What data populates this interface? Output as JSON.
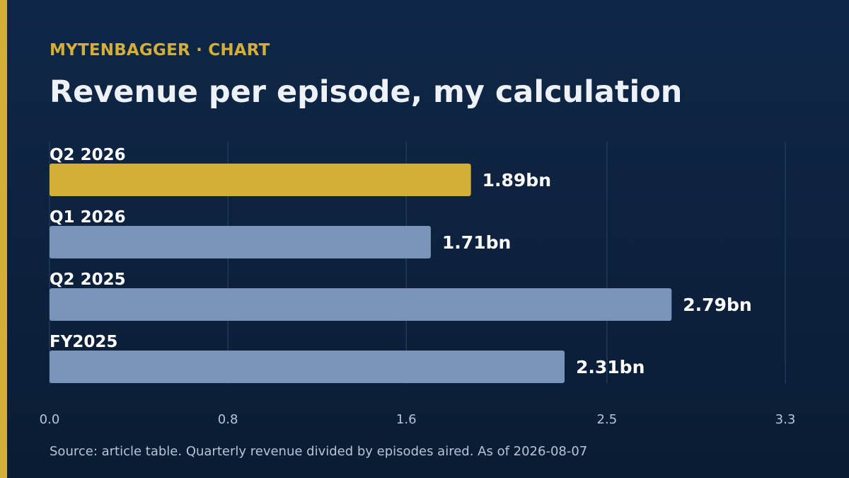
{
  "header": {
    "kicker": "MYTENBAGGER · CHART",
    "title": "Revenue per episode, my calculation"
  },
  "footer": {
    "source": "Source: article table. Quarterly revenue divided by episodes aired. As of 2026-08-07"
  },
  "colors": {
    "accent": "#d4af37",
    "highlight_bar": "#d4af37",
    "bar": "#7a93b8",
    "grid": "#2a4466",
    "tick_text": "#b9c4d6",
    "label_text": "#ffffff"
  },
  "chart_data": {
    "type": "bar",
    "orientation": "horizontal",
    "title": "Revenue per episode, my calculation",
    "categories": [
      "Q2 2026",
      "Q1 2026",
      "Q2 2025",
      "FY2025"
    ],
    "values": [
      1.89,
      1.71,
      2.79,
      2.31
    ],
    "data_labels": [
      "1.89bn",
      "1.71bn",
      "2.79bn",
      "2.31bn"
    ],
    "highlight_index": 0,
    "xlim": [
      0,
      3.3
    ],
    "xticks": [
      0.0,
      0.8,
      1.6,
      2.5,
      3.3
    ],
    "xtick_labels": [
      "0.0",
      "0.8",
      "1.6",
      "2.5",
      "3.3"
    ],
    "grid": true,
    "xlabel": "",
    "ylabel": ""
  }
}
